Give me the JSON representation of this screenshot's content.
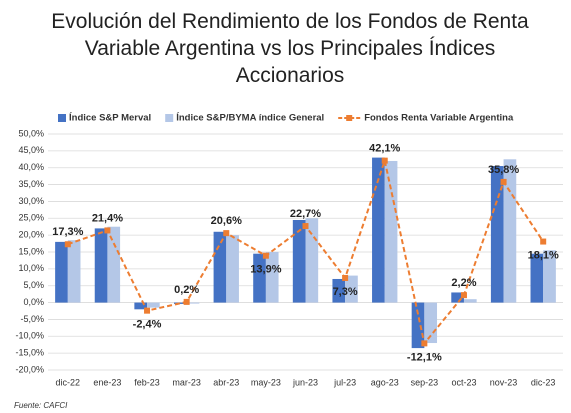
{
  "chart_data": {
    "type": "bar",
    "title": "Evolución del Rendimiento de los Fondos de Renta Variable Argentina vs los Principales Índices Accionarios",
    "categories": [
      "dic-22",
      "ene-23",
      "feb-23",
      "mar-23",
      "abr-23",
      "may-23",
      "jun-23",
      "jul-23",
      "ago-23",
      "sep-23",
      "oct-23",
      "nov-23",
      "dic-23"
    ],
    "series": [
      {
        "name": "Índice S&P Merval",
        "type": "bar",
        "color": "#4472c4",
        "values": [
          18,
          22,
          -2,
          -0.4,
          21,
          14.5,
          24.5,
          7,
          43,
          -13.5,
          3,
          40.5,
          14.5
        ]
      },
      {
        "name": "Índice S&P/BYMA índice General",
        "type": "bar",
        "color": "#b4c7e7",
        "values": [
          18.5,
          22.5,
          -1.5,
          -0.3,
          20,
          15,
          25,
          8,
          42,
          -12,
          1,
          42.5,
          15.5
        ]
      },
      {
        "name": "Fondos Renta Variable Argentina",
        "type": "line",
        "color": "#ed7d31",
        "values": [
          17.3,
          21.4,
          -2.4,
          0.2,
          20.6,
          13.9,
          22.7,
          7.3,
          42.1,
          -12.1,
          2.2,
          35.8,
          18.1
        ],
        "value_labels": [
          "17,3%",
          "21,4%",
          "-2,4%",
          "0,2%",
          "20,6%",
          "13,9%",
          "22,7%",
          "7,3%",
          "42,1%",
          "-12,1%",
          "2,2%",
          "35,8%",
          "18,1%"
        ]
      }
    ],
    "ylim": [
      -20,
      50
    ],
    "yticks": [
      {
        "value": -20,
        "label": "-20,0%"
      },
      {
        "value": -15,
        "label": "-15,0%"
      },
      {
        "value": -10,
        "label": "-10,0%"
      },
      {
        "value": -5,
        "label": "-5,0%"
      },
      {
        "value": 0,
        "label": "0,0%"
      },
      {
        "value": 5,
        "label": "5,0%"
      },
      {
        "value": 10,
        "label": "10,0%"
      },
      {
        "value": 15,
        "label": "15,0%"
      },
      {
        "value": 20,
        "label": "20,0%"
      },
      {
        "value": 25,
        "label": "25,0%"
      },
      {
        "value": 30,
        "label": "30,0%"
      },
      {
        "value": 35,
        "label": "35,0%"
      },
      {
        "value": 40,
        "label": "40,0%"
      },
      {
        "value": 45,
        "label": "45,0%"
      },
      {
        "value": 50,
        "label": "50,0%"
      }
    ],
    "grid": true,
    "legend": "top",
    "source": "Fuente: CAFCI"
  }
}
